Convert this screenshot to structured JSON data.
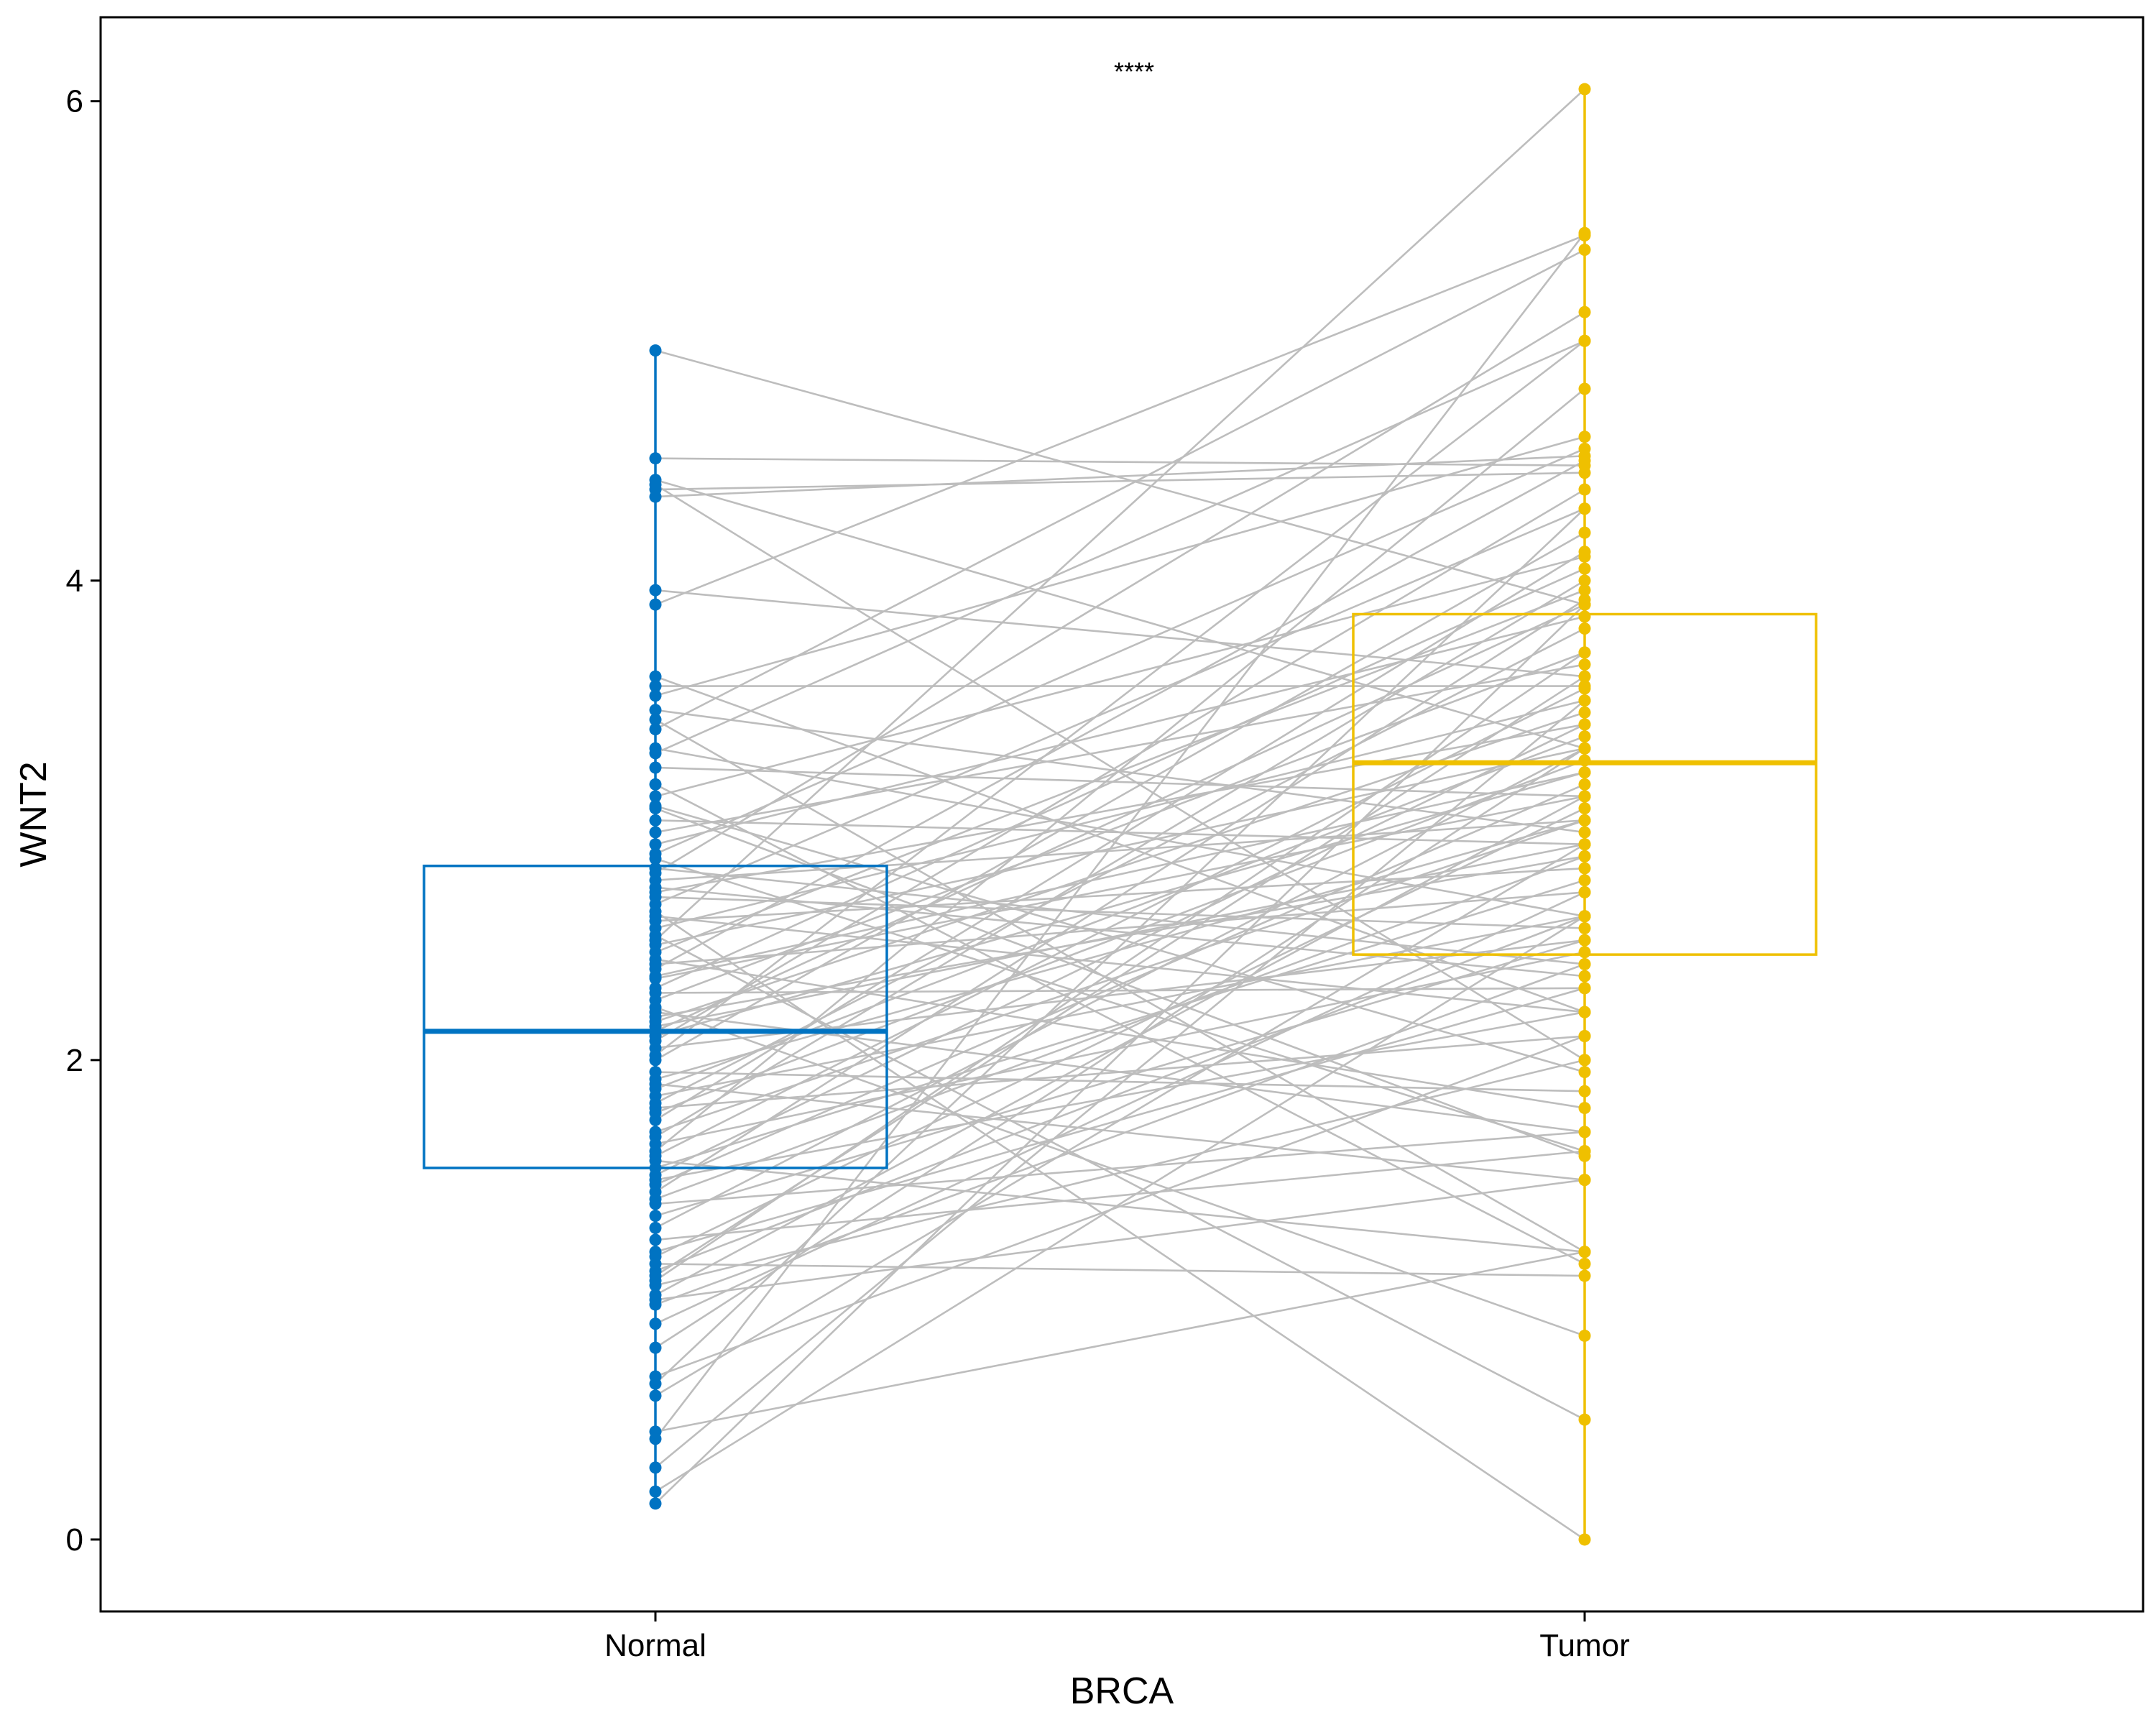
{
  "chart_data": {
    "type": "box+paired-lines",
    "title": "",
    "xlabel": "BRCA",
    "ylabel": "WNT2",
    "ylim": [
      -0.3,
      6.35
    ],
    "yticks": [
      0,
      2,
      4,
      6
    ],
    "categories": [
      "Normal",
      "Tumor"
    ],
    "significance": "****",
    "colors": {
      "Normal": "#0073C2",
      "Tumor": "#EFC000",
      "line": "#BDBDBD"
    },
    "grid": false,
    "legend": "none",
    "boxes": [
      {
        "group": "Normal",
        "q1": 1.55,
        "median": 2.12,
        "q3": 2.81
      },
      {
        "group": "Tumor",
        "q1": 2.44,
        "median": 3.24,
        "q3": 3.86
      }
    ],
    "pairs": [
      [
        4.96,
        3.9
      ],
      [
        4.51,
        4.48
      ],
      [
        4.42,
        3.3
      ],
      [
        4.38,
        4.45
      ],
      [
        4.35,
        4.52
      ],
      [
        4.4,
        2.0
      ],
      [
        3.96,
        3.6
      ],
      [
        3.9,
        5.44
      ],
      [
        3.6,
        2.2
      ],
      [
        3.56,
        3.56
      ],
      [
        3.52,
        4.6
      ],
      [
        3.42,
        1.2
      ],
      [
        3.38,
        5.38
      ],
      [
        3.3,
        2.6
      ],
      [
        3.28,
        5.0
      ],
      [
        3.22,
        3.1
      ],
      [
        3.1,
        4.1
      ],
      [
        3.05,
        1.6
      ],
      [
        3.0,
        2.9
      ],
      [
        2.9,
        3.85
      ],
      [
        2.86,
        4.55
      ],
      [
        2.8,
        2.4
      ],
      [
        2.78,
        5.12
      ],
      [
        2.75,
        3.0
      ],
      [
        2.7,
        3.4
      ],
      [
        2.65,
        4.3
      ],
      [
        2.6,
        2.2
      ],
      [
        2.58,
        2.8
      ],
      [
        2.55,
        3.5
      ],
      [
        2.52,
        0.5
      ],
      [
        2.48,
        3.3
      ],
      [
        2.45,
        3.96
      ],
      [
        2.4,
        2.7
      ],
      [
        2.35,
        3.2
      ],
      [
        2.3,
        4.05
      ],
      [
        2.28,
        2.3
      ],
      [
        2.25,
        3.7
      ],
      [
        2.2,
        1.7
      ],
      [
        2.16,
        3.45
      ],
      [
        2.14,
        2.9
      ],
      [
        2.12,
        3.9
      ],
      [
        2.1,
        3.2
      ],
      [
        2.05,
        2.5
      ],
      [
        2.0,
        4.2
      ],
      [
        1.95,
        1.87
      ],
      [
        1.92,
        3.0
      ],
      [
        1.88,
        3.35
      ],
      [
        1.85,
        2.6
      ],
      [
        1.82,
        3.8
      ],
      [
        1.8,
        2.1
      ],
      [
        1.75,
        4.12
      ],
      [
        1.7,
        3.0
      ],
      [
        1.65,
        2.45
      ],
      [
        1.6,
        3.55
      ],
      [
        1.58,
        1.2
      ],
      [
        1.55,
        2.75
      ],
      [
        1.52,
        3.4
      ],
      [
        1.5,
        2.2
      ],
      [
        1.45,
        3.92
      ],
      [
        1.4,
        1.7
      ],
      [
        1.3,
        3.3
      ],
      [
        1.25,
        1.62
      ],
      [
        1.2,
        2.3
      ],
      [
        1.18,
        3.05
      ],
      [
        1.15,
        1.1
      ],
      [
        1.12,
        2.6
      ],
      [
        1.1,
        3.6
      ],
      [
        1.06,
        2.0
      ],
      [
        1.02,
        3.1
      ],
      [
        1.0,
        1.5
      ],
      [
        0.9,
        2.7
      ],
      [
        0.8,
        3.3
      ],
      [
        0.68,
        2.1
      ],
      [
        0.65,
        4.3
      ],
      [
        0.6,
        2.9
      ],
      [
        0.45,
        1.2
      ],
      [
        0.42,
        5.45
      ],
      [
        0.3,
        3.5
      ],
      [
        0.2,
        2.6
      ],
      [
        0.15,
        3.9
      ],
      [
        2.62,
        0.0
      ],
      [
        3.15,
        1.15
      ],
      [
        2.22,
        0.85
      ],
      [
        2.5,
        6.05
      ],
      [
        1.62,
        4.8
      ],
      [
        2.02,
        5.0
      ],
      [
        2.84,
        1.62
      ],
      [
        1.35,
        2.5
      ],
      [
        3.46,
        2.95
      ],
      [
        2.38,
        4.5
      ],
      [
        1.78,
        3.25
      ],
      [
        2.68,
        2.55
      ],
      [
        1.48,
        3.15
      ],
      [
        2.95,
        3.65
      ],
      [
        2.18,
        2.85
      ],
      [
        0.98,
        2.4
      ],
      [
        3.06,
        1.95
      ],
      [
        1.68,
        4.0
      ],
      [
        2.42,
        1.8
      ],
      [
        1.08,
        3.7
      ],
      [
        2.08,
        4.38
      ],
      [
        1.9,
        1.5
      ],
      [
        2.34,
        3.1
      ],
      [
        2.72,
        2.35
      ],
      [
        1.42,
        2.85
      ]
    ]
  }
}
